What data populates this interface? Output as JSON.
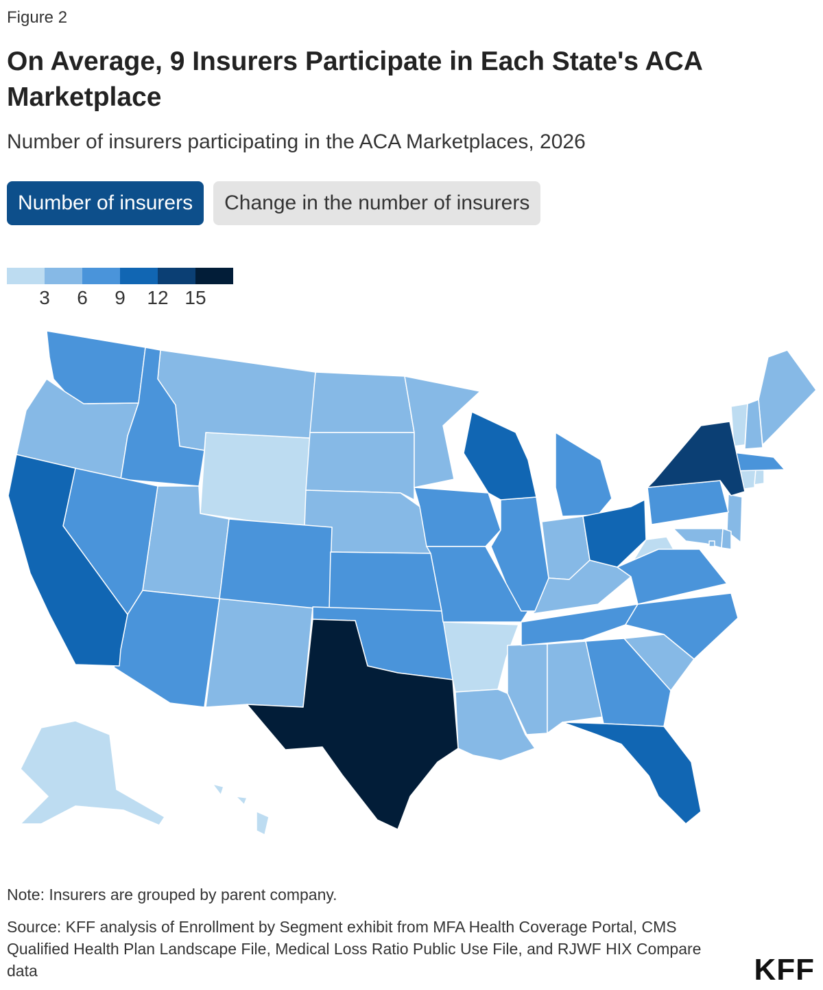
{
  "header": {
    "figure_label": "Figure 2",
    "title": "On Average, 9 Insurers Participate in Each State's ACA Marketplace",
    "subtitle": "Number of insurers participating in the ACA Marketplaces, 2026"
  },
  "tabs": [
    {
      "label": "Number of insurers",
      "active": true
    },
    {
      "label": "Change in the number of insurers",
      "active": false
    }
  ],
  "legend": {
    "colors": [
      "#bddcf1",
      "#86b9e6",
      "#4a94da",
      "#1166b3",
      "#0b3f74",
      "#021d38"
    ],
    "tick_labels": [
      "3",
      "6",
      "9",
      "12",
      "15"
    ]
  },
  "chart_data": {
    "type": "choropleth",
    "bins": [
      {
        "range": "<3",
        "color": "#bddcf1"
      },
      {
        "range": "3-6",
        "color": "#86b9e6"
      },
      {
        "range": "6-9",
        "color": "#4a94da"
      },
      {
        "range": "9-12",
        "color": "#1166b3"
      },
      {
        "range": "12-15",
        "color": "#0b3f74"
      },
      {
        "range": ">15",
        "color": "#021d38"
      }
    ],
    "states": {
      "AK": 0,
      "HI": 0,
      "WY": 0,
      "AR": 0,
      "WV": 0,
      "VT": 0,
      "CT": 0,
      "RI": 0,
      "OR": 1,
      "MT": 1,
      "ND": 1,
      "SD": 1,
      "NE": 1,
      "MN": 1,
      "UT": 1,
      "NM": 1,
      "IN": 1,
      "KY": 1,
      "LA": 1,
      "MS": 1,
      "AL": 1,
      "SC": 1,
      "ME": 1,
      "NH": 1,
      "NJ": 1,
      "MD": 1,
      "DE": 1,
      "DC": 1,
      "WA": 2,
      "ID": 2,
      "NV": 2,
      "CO": 2,
      "AZ": 2,
      "KS": 2,
      "OK": 2,
      "IA": 2,
      "MO": 2,
      "IL": 2,
      "MI": 2,
      "TN": 2,
      "GA": 2,
      "NC": 2,
      "VA": 2,
      "PA": 2,
      "MA": 2,
      "CA": 3,
      "WI": 3,
      "OH": 3,
      "FL": 3,
      "NY": 4,
      "TX": 5
    }
  },
  "footer": {
    "note": "Note: Insurers are grouped by parent company.",
    "source": "Source: KFF analysis of Enrollment by Segment exhibit from MFA Health Coverage Portal, CMS Qualified Health Plan Landscape File, Medical Loss Ratio Public Use File, and RJWF HIX Compare data",
    "logo": "KFF"
  }
}
